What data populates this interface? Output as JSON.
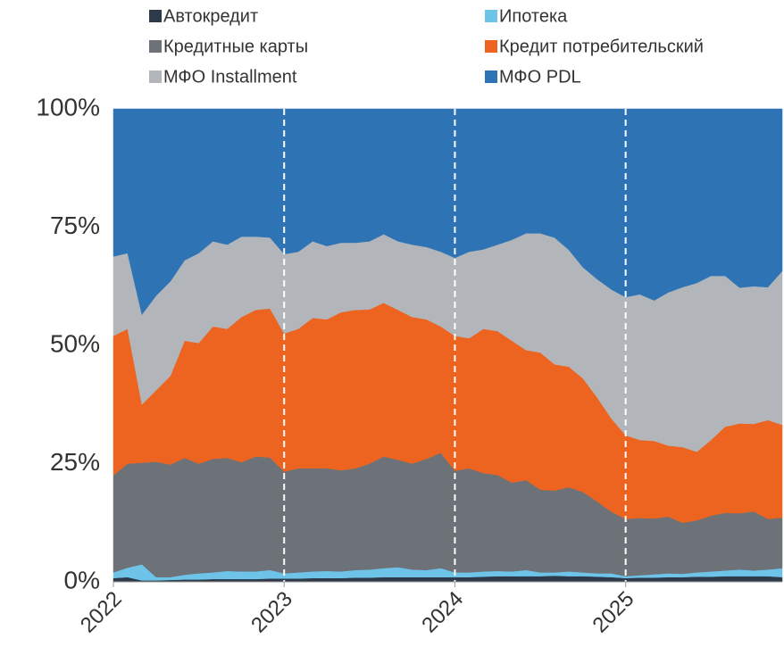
{
  "chart_data": {
    "type": "stacked_area_100",
    "x": [
      2022,
      2022.083,
      2022.167,
      2022.25,
      2022.333,
      2022.417,
      2022.5,
      2022.583,
      2022.667,
      2022.75,
      2022.833,
      2022.917,
      2023,
      2023.083,
      2023.167,
      2023.25,
      2023.333,
      2023.417,
      2023.5,
      2023.583,
      2023.667,
      2023.75,
      2023.833,
      2023.917,
      2024,
      2024.083,
      2024.167,
      2024.25,
      2024.333,
      2024.417,
      2024.5,
      2024.583,
      2024.667,
      2024.75,
      2024.833,
      2024.917,
      2025,
      2025.083,
      2025.167,
      2025.25,
      2025.333,
      2025.417,
      2025.5,
      2025.583,
      2025.667,
      2025.75,
      2025.833,
      2025.917
    ],
    "series": [
      {
        "name": "Автокредит",
        "color": "#2e3a4a",
        "values": [
          0.8,
          1.0,
          0.3,
          0.3,
          0.4,
          0.5,
          0.5,
          0.6,
          0.6,
          0.6,
          0.6,
          0.7,
          0.7,
          0.7,
          0.8,
          0.8,
          0.8,
          0.9,
          0.9,
          1.0,
          1.0,
          1.0,
          1.0,
          1.0,
          1.0,
          1.0,
          1.1,
          1.2,
          1.2,
          1.2,
          1.2,
          1.3,
          1.2,
          1.2,
          1.1,
          1.0,
          0.8,
          0.9,
          0.9,
          1.0,
          1.0,
          1.1,
          1.1,
          1.2,
          1.2,
          1.2,
          1.2,
          1.0
        ]
      },
      {
        "name": "Ипотека",
        "color": "#6ec3e8",
        "values": [
          1.2,
          2.0,
          3.4,
          0.7,
          0.6,
          1.0,
          1.3,
          1.4,
          1.7,
          1.6,
          1.6,
          1.8,
          1.1,
          1.3,
          1.4,
          1.5,
          1.4,
          1.6,
          1.7,
          1.9,
          2.1,
          1.6,
          1.5,
          1.9,
          1.0,
          1.0,
          1.1,
          1.1,
          1.0,
          1.3,
          0.8,
          0.7,
          1.0,
          0.8,
          0.7,
          0.8,
          0.4,
          0.5,
          0.7,
          0.8,
          0.7,
          0.9,
          1.1,
          1.2,
          1.4,
          1.2,
          1.4,
          1.9
        ]
      },
      {
        "name": "Кредитные карты",
        "color": "#6d7278",
        "values": [
          20.5,
          22.0,
          21.5,
          24.4,
          23.8,
          24.7,
          23.2,
          24.0,
          23.9,
          23.1,
          24.3,
          23.8,
          21.5,
          22.0,
          21.8,
          21.7,
          21.4,
          21.5,
          22.4,
          23.6,
          22.7,
          22.4,
          23.5,
          24.4,
          21.5,
          22.0,
          20.8,
          20.3,
          18.8,
          19.0,
          17.5,
          17.3,
          17.8,
          17.0,
          15.2,
          13.0,
          12.1,
          12.1,
          11.8,
          12.0,
          10.8,
          11.0,
          11.8,
          12.2,
          11.9,
          12.5,
          10.7,
          10.7
        ]
      },
      {
        "name": "Кредит потребительский",
        "color": "#ec6420",
        "values": [
          29.5,
          28.5,
          12.3,
          15.1,
          18.7,
          24.8,
          25.5,
          28.0,
          27.3,
          30.7,
          31.0,
          31.5,
          29.2,
          29.5,
          31.8,
          31.5,
          33.4,
          33.5,
          32.6,
          32.5,
          31.7,
          31.0,
          29.5,
          26.7,
          28.5,
          27.5,
          30.5,
          30.4,
          30.0,
          27.5,
          29.0,
          26.7,
          25.5,
          24.0,
          22.0,
          19.7,
          17.7,
          16.5,
          16.4,
          15.0,
          16.0,
          14.5,
          16.0,
          18.2,
          19.0,
          18.5,
          20.9,
          19.6
        ]
      },
      {
        "name": "МФО Installment",
        "color": "#b2b6ba",
        "values": [
          16.8,
          16.0,
          19.0,
          20.0,
          20.0,
          17.0,
          19.0,
          18.0,
          17.8,
          17.0,
          15.5,
          15.0,
          16.8,
          16.3,
          16.2,
          15.5,
          14.7,
          14.2,
          14.4,
          14.5,
          14.5,
          15.3,
          15.3,
          15.8,
          16.5,
          18.3,
          16.8,
          18.3,
          21.3,
          24.7,
          25.2,
          26.8,
          24.7,
          23.5,
          25.0,
          27.3,
          29.2,
          30.8,
          29.7,
          32.4,
          33.8,
          35.7,
          34.7,
          31.9,
          28.7,
          29.1,
          28.1,
          32.5
        ]
      },
      {
        "name": "МФО PDL",
        "color": "#2e74b5",
        "values": [
          31.2,
          30.5,
          43.5,
          39.5,
          36.5,
          32.0,
          30.5,
          28.0,
          28.7,
          27.0,
          27.0,
          27.2,
          30.7,
          30.2,
          28.0,
          29.0,
          28.3,
          28.3,
          28.0,
          26.5,
          28.0,
          28.7,
          29.2,
          30.2,
          31.5,
          30.2,
          29.7,
          28.7,
          27.7,
          26.3,
          26.3,
          27.2,
          29.8,
          33.5,
          36.0,
          38.2,
          39.8,
          39.2,
          40.5,
          38.8,
          37.7,
          36.8,
          35.3,
          35.3,
          37.8,
          37.5,
          37.7,
          34.3
        ]
      }
    ],
    "xlim": [
      2022,
      2025.917
    ],
    "xticks": [
      2022,
      2023,
      2024,
      2025
    ],
    "ylim": [
      0,
      100
    ],
    "yticks": [
      {
        "value": 0,
        "label": "0%"
      },
      {
        "value": 25,
        "label": "25%"
      },
      {
        "value": 50,
        "label": "50%"
      },
      {
        "value": 75,
        "label": "75%"
      },
      {
        "value": 100,
        "label": "100%"
      }
    ],
    "xgrid": true,
    "legend": "top"
  }
}
